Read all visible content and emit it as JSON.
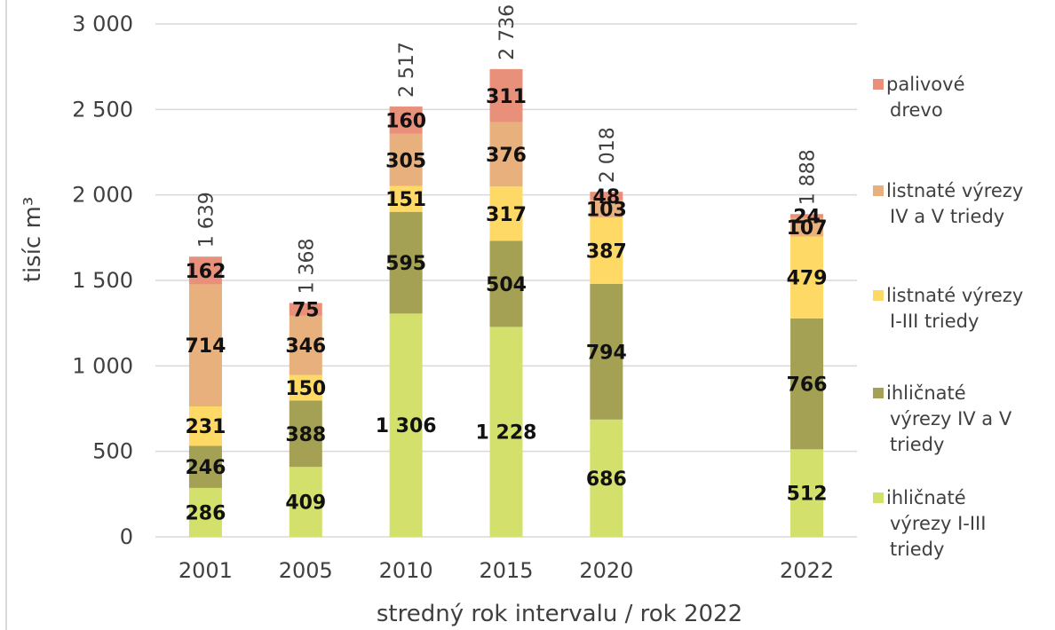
{
  "chart_data": {
    "type": "bar",
    "stacked": true,
    "categories": [
      "2001",
      "2005",
      "2010",
      "2015",
      "2020",
      "2022"
    ],
    "category_display": [
      "2001",
      "2005",
      "2010",
      "2015",
      "2020",
      "",
      "2022"
    ],
    "series": [
      {
        "name": "ihličnaté výrezy I-III triedy",
        "color": "#d4e06c",
        "values": [
          286,
          409,
          1306,
          1228,
          686,
          512
        ]
      },
      {
        "name": "ihličnaté výrezy IV a V triedy",
        "color": "#a4a054",
        "values": [
          246,
          388,
          595,
          504,
          794,
          766
        ]
      },
      {
        "name": "listnaté výrezy I-III triedy",
        "color": "#ffd966",
        "values": [
          231,
          150,
          151,
          317,
          387,
          479
        ]
      },
      {
        "name": "listnaté výrezy IV a V triedy",
        "color": "#e8b07c",
        "values": [
          714,
          346,
          305,
          376,
          103,
          107
        ]
      },
      {
        "name": "palivové drevo",
        "color": "#e8907a",
        "values": [
          162,
          75,
          160,
          311,
          48,
          24
        ]
      }
    ],
    "value_labels": [
      [
        "286",
        "409",
        "1 306",
        "1 228",
        "686",
        "512"
      ],
      [
        "246",
        "388",
        "595",
        "504",
        "794",
        "766"
      ],
      [
        "231",
        "150",
        "151",
        "317",
        "387",
        "479"
      ],
      [
        "714",
        "346",
        "305",
        "376",
        "103",
        "107"
      ],
      [
        "162",
        "75",
        "160",
        "311",
        "48",
        "24"
      ]
    ],
    "totals": [
      1639,
      1368,
      2517,
      2736,
      2018,
      1888
    ],
    "total_labels": [
      "1 639",
      "1 368",
      "2 517",
      "2 736",
      "2 018",
      "1 888"
    ],
    "ylabel": "tisíc m³",
    "xlabel": "stredný rok intervalu / rok 2022",
    "ylim": [
      0,
      3000
    ],
    "yticks": [
      0,
      500,
      1000,
      1500,
      2000,
      2500,
      3000
    ],
    "ytick_labels": [
      "0",
      "500",
      "1 000",
      "1 500",
      "2 000",
      "2 500",
      "3 000"
    ],
    "grid": true,
    "legend_position": "right",
    "legend": [
      {
        "lines": [
          "palivové",
          "drevo"
        ],
        "color": "#e8907a"
      },
      {
        "lines": [
          "listnaté výrezy",
          "IV a V triedy"
        ],
        "color": "#e8b07c"
      },
      {
        "lines": [
          "listnaté výrezy",
          "I-III triedy"
        ],
        "color": "#ffd966"
      },
      {
        "lines": [
          "ihličnaté",
          "výrezy IV a V",
          "triedy"
        ],
        "color": "#a4a054"
      },
      {
        "lines": [
          "ihličnaté",
          "výrezy I-III",
          "triedy"
        ],
        "color": "#d4e06c"
      }
    ]
  }
}
